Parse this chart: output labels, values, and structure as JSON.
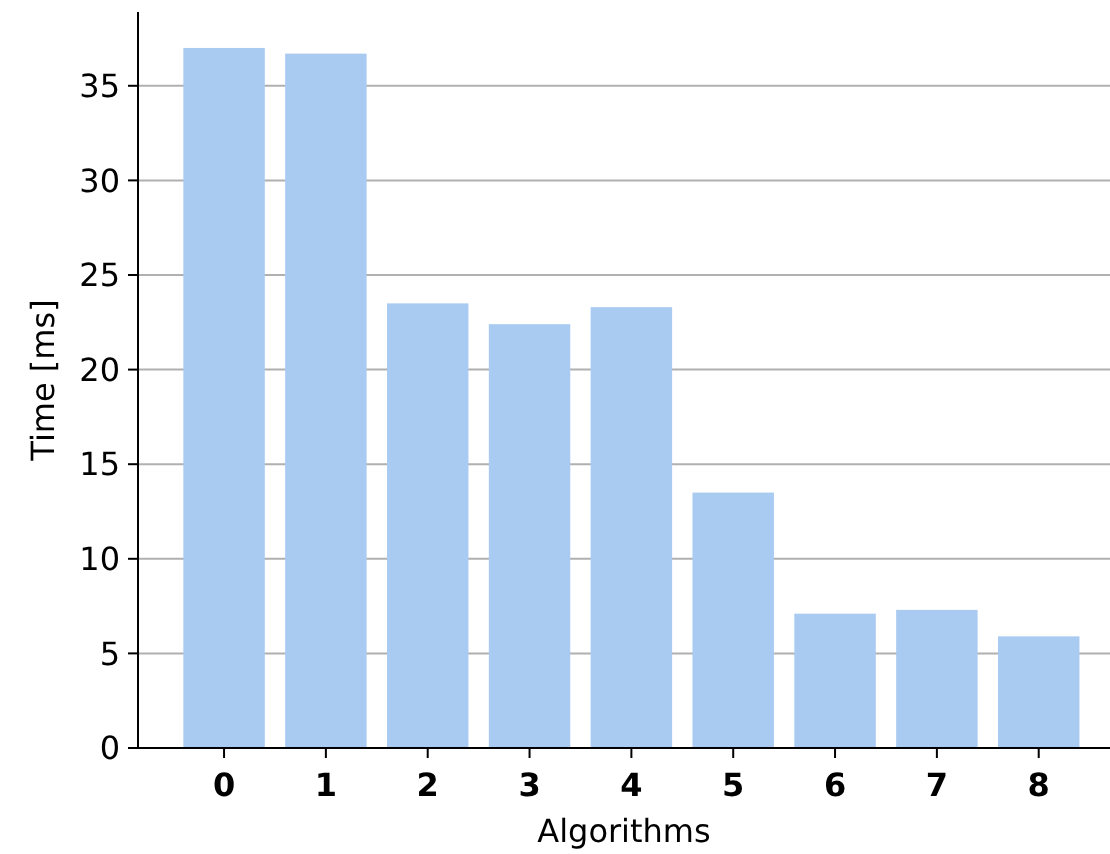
{
  "chart_data": {
    "type": "bar",
    "xlabel": "Algorithms",
    "ylabel": "Time [ms]",
    "categories": [
      "0",
      "1",
      "2",
      "3",
      "4",
      "5",
      "6",
      "7",
      "8"
    ],
    "values": [
      37.0,
      36.7,
      23.5,
      22.4,
      23.3,
      13.5,
      7.1,
      7.3,
      5.9
    ],
    "color": "#a9cbf2",
    "ylim": [
      0,
      38.9
    ],
    "yticks": [
      0,
      5,
      10,
      15,
      20,
      25,
      30,
      35
    ],
    "grid": "y"
  }
}
